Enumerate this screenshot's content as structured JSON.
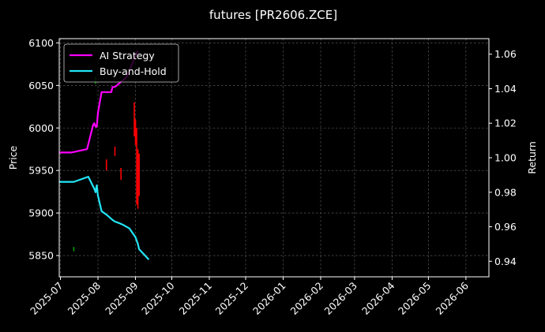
{
  "chart_data": {
    "type": "line",
    "title": "futures [PR2606.ZCE]",
    "ylabel_left": "Price",
    "ylabel_right": "Return",
    "x_ticks": [
      "2025-07",
      "2025-08",
      "2025-09",
      "2025-10",
      "2025-11",
      "2025-12",
      "2026-01",
      "2026-02",
      "2026-03",
      "2026-04",
      "2026-05",
      "2026-06"
    ],
    "x_range": [
      "2025-06-30",
      "2026-06-20"
    ],
    "y_left_range": [
      5825,
      6105
    ],
    "y_left_ticks": [
      5850,
      5900,
      5950,
      6000,
      6050,
      6100
    ],
    "y_right_range": [
      0.931,
      1.069
    ],
    "y_right_ticks": [
      "0.94",
      "0.96",
      "0.98",
      "1.00",
      "1.02",
      "1.04",
      "1.06"
    ],
    "grid": true,
    "legend_position": "top-left",
    "series": [
      {
        "name": "AI Strategy",
        "axis": "right",
        "color": "#ff00ff",
        "x": [
          "2025-06-30",
          "2025-07-10",
          "2025-07-23",
          "2025-07-28",
          "2025-07-29",
          "2025-07-30",
          "2025-07-31",
          "2025-08-01",
          "2025-08-04",
          "2025-08-12",
          "2025-08-13",
          "2025-08-15",
          "2025-08-20",
          "2025-08-25",
          "2025-08-29",
          "2025-09-03"
        ],
        "y": [
          1.003,
          1.003,
          1.005,
          1.019,
          1.02,
          1.018,
          1.018,
          1.026,
          1.038,
          1.038,
          1.041,
          1.041,
          1.044,
          1.047,
          1.054,
          1.062
        ]
      },
      {
        "name": "Buy-and-Hold",
        "axis": "right",
        "color": "#22e5f5",
        "x": [
          "2025-06-30",
          "2025-07-12",
          "2025-07-24",
          "2025-07-29",
          "2025-07-30",
          "2025-07-31",
          "2025-08-01",
          "2025-08-04",
          "2025-08-08",
          "2025-08-13",
          "2025-08-15",
          "2025-08-19",
          "2025-08-22",
          "2025-08-27",
          "2025-09-01",
          "2025-09-03",
          "2025-09-04",
          "2025-09-08",
          "2025-09-12"
        ],
        "y": [
          0.986,
          0.986,
          0.989,
          0.982,
          0.98,
          0.984,
          0.978,
          0.969,
          0.967,
          0.964,
          0.963,
          0.962,
          0.961,
          0.959,
          0.954,
          0.95,
          0.947,
          0.944,
          0.941
        ]
      }
    ],
    "candles": [
      {
        "x": "2025-07-12",
        "high": 5860,
        "low": 5855,
        "color": "#00a000"
      },
      {
        "x": "2025-07-30",
        "high": 6060,
        "low": 6052,
        "color": "#00a000"
      },
      {
        "x": "2025-08-08",
        "high": 5963,
        "low": 5950,
        "color": "#ff0000"
      },
      {
        "x": "2025-08-15",
        "high": 5978,
        "low": 5967,
        "color": "#ff0000"
      },
      {
        "x": "2025-08-20",
        "high": 5953,
        "low": 5939,
        "color": "#ff0000"
      },
      {
        "x": "2025-08-31",
        "high": 6030,
        "low": 5990,
        "color": "#ff0000"
      },
      {
        "x": "2025-09-01",
        "high": 6010,
        "low": 5980,
        "color": "#ff0000"
      },
      {
        "x": "2025-09-02",
        "high": 6000,
        "low": 5910,
        "color": "#ff0000"
      },
      {
        "x": "2025-09-03",
        "high": 5975,
        "low": 5905,
        "color": "#ff0000"
      },
      {
        "x": "2025-09-04",
        "high": 5970,
        "low": 5920,
        "color": "#ff0000"
      }
    ]
  }
}
